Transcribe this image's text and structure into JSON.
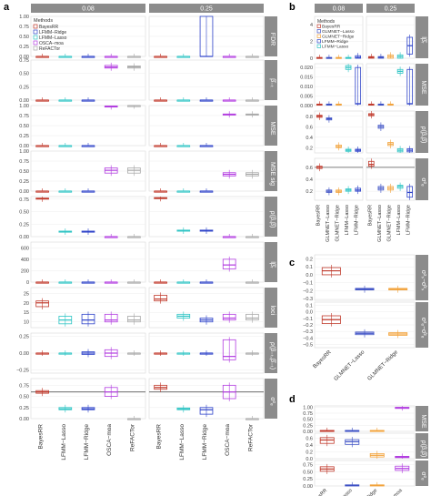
{
  "panel_letters": {
    "a": "a",
    "b": "b",
    "c": "c",
    "d": "d"
  },
  "legend": {
    "a": {
      "title": "Methods",
      "items": [
        "BayesRR",
        "LFMM−Ridge",
        "LFMM−Lasso",
        "OSCA−moa",
        "ReFACTor"
      ]
    },
    "b": {
      "title": "Methods",
      "items": [
        "BayesRR",
        "GLMNET−Lasso",
        "GLMNET−Ridge",
        "LFMM−Ridge",
        "LFMM−Lasso"
      ]
    }
  },
  "colors": {
    "BayesRR": "#c0392b",
    "LFMM−Lasso": "#2ec4c4",
    "LFMM−Ridge": "#2e43c9",
    "OSCA−moa": "#b23ce0",
    "ReFACTor": "#a8a8a8",
    "GLMNET−Lasso": "#3b4fc4",
    "GLMNET−Ridge": "#f2a23a",
    "strip": "#8c8c8c",
    "hline": "#555555"
  },
  "chart_data": [
    {
      "panel": "a",
      "type": "box",
      "columns": [
        "0.08",
        "0.25"
      ],
      "categories": [
        "BayesRR",
        "LFMM−Lasso",
        "LFMM−Ridge",
        "OSCA−moa",
        "ReFACTor"
      ],
      "rows": [
        {
          "label": "FDR",
          "yticks": [
            "0.00",
            "0.25",
            "0.50",
            "0.75",
            "1.00"
          ],
          "ylim": [
            0,
            1
          ],
          "med": [
            [
              0,
              0,
              0,
              0,
              0
            ],
            [
              0,
              0,
              0,
              0,
              0
            ]
          ],
          "q1": [
            [
              0,
              0,
              0,
              0,
              0
            ],
            [
              0,
              0,
              0,
              0,
              0
            ]
          ],
          "q3": [
            [
              0,
              0,
              0,
              0,
              0
            ],
            [
              0,
              0,
              1,
              0,
              0
            ]
          ]
        },
        {
          "label": "β̂₋ₜ",
          "yticks": [
            "0.00",
            "0.25",
            "0.50",
            "0.75"
          ],
          "ylim": [
            0,
            0.75
          ],
          "med": [
            [
              0,
              0,
              0,
              0.62,
              0.62
            ],
            [
              0,
              0,
              0,
              0,
              0
            ]
          ],
          "q1": [
            [
              0,
              0,
              0,
              0.6,
              0.6
            ],
            [
              0,
              0,
              0,
              0,
              0
            ]
          ],
          "q3": [
            [
              0,
              0,
              0,
              0.65,
              0.64
            ],
            [
              0,
              0,
              0,
              0,
              0
            ]
          ]
        },
        {
          "label": "MSE",
          "yticks": [
            "0.00",
            "0.25",
            "0.50",
            "0.75",
            "1.00"
          ],
          "ylim": [
            0,
            1
          ],
          "med": [
            [
              0,
              0,
              0,
              0.98,
              1.0
            ],
            [
              0,
              0,
              0,
              0.78,
              0.78
            ]
          ],
          "q1": [
            [
              0,
              0,
              0,
              0.97,
              0.99
            ],
            [
              0,
              0,
              0,
              0.77,
              0.77
            ]
          ],
          "q3": [
            [
              0,
              0,
              0,
              0.99,
              1.0
            ],
            [
              0,
              0,
              0,
              0.79,
              0.79
            ]
          ]
        },
        {
          "label": "MSE",
          "sub": "sig",
          "yticks": [
            "0.00",
            "0.25",
            "0.50",
            "0.75",
            "1.00"
          ],
          "ylim": [
            0,
            1
          ],
          "med": [
            [
              0,
              0,
              0,
              0.52,
              0.52
            ],
            [
              0,
              0,
              0,
              0.42,
              0.42
            ]
          ],
          "q1": [
            [
              0,
              0,
              0,
              0.45,
              0.45
            ],
            [
              0,
              0,
              0,
              0.38,
              0.38
            ]
          ],
          "q3": [
            [
              0,
              0,
              0,
              0.58,
              0.58
            ],
            [
              0,
              0,
              0,
              0.46,
              0.46
            ]
          ]
        },
        {
          "label": "ρ(β,β̂)",
          "yticks": [
            "0.00",
            "0.25",
            "0.50",
            "0.75"
          ],
          "ylim": [
            0,
            0.8
          ],
          "med": [
            [
              0.76,
              0.1,
              0.1,
              0,
              0
            ],
            [
              0.77,
              0.12,
              0.12,
              0,
              0
            ]
          ],
          "q1": [
            [
              0.75,
              0.09,
              0.09,
              0,
              0
            ],
            [
              0.76,
              0.11,
              0.11,
              0,
              0
            ]
          ],
          "q3": [
            [
              0.77,
              0.11,
              0.11,
              0,
              0
            ],
            [
              0.78,
              0.13,
              0.13,
              0,
              0
            ]
          ]
        },
        {
          "label": "lβ̂ᵣ",
          "yticks": [
            "0",
            "200",
            "400",
            "600"
          ],
          "ylim": [
            0,
            700
          ],
          "med": [
            [
              0,
              0,
              0,
              0,
              0
            ],
            [
              0,
              0,
              0,
              300,
              0
            ]
          ],
          "q1": [
            [
              0,
              0,
              0,
              0,
              0
            ],
            [
              0,
              0,
              0,
              230,
              0
            ]
          ],
          "q3": [
            [
              0,
              0,
              0,
              0,
              0
            ],
            [
              0,
              0,
              0,
              400,
              0
            ]
          ]
        },
        {
          "label": "loci",
          "yticks": [
            "10",
            "15",
            "20",
            "25"
          ],
          "ylim": [
            7,
            28
          ],
          "med": [
            [
              20,
              11,
              11,
              11,
              11
            ],
            [
              22,
              13,
              11,
              12,
              12
            ]
          ],
          "q1": [
            [
              18,
              9,
              9,
              10,
              10
            ],
            [
              21,
              12,
              10,
              11,
              11
            ]
          ],
          "q3": [
            [
              21,
              13,
              14,
              14,
              13
            ],
            [
              24,
              14,
              12,
              14,
              14
            ]
          ]
        },
        {
          "label": "ρ(β₋ₜ,β̂₋ₜ)",
          "yticks": [
            "−0.25",
            "0.00",
            "0.25"
          ],
          "ylim": [
            -0.3,
            0.3
          ],
          "med": [
            [
              0,
              0,
              0,
              0,
              0
            ],
            [
              0,
              0,
              0,
              -0.05,
              0
            ]
          ],
          "q1": [
            [
              0,
              0,
              -0.02,
              -0.05,
              0
            ],
            [
              0,
              0,
              0,
              -0.1,
              0
            ]
          ],
          "q3": [
            [
              0,
              0,
              0.02,
              0.05,
              0
            ],
            [
              0,
              0,
              0,
              0.2,
              0
            ]
          ]
        },
        {
          "label": "σ²ₑ",
          "yticks": [
            "0.00",
            "0.25",
            "0.50",
            "0.75"
          ],
          "ylim": [
            0,
            0.9
          ],
          "hline": 0.6,
          "med": [
            [
              0.6,
              0.22,
              0.22,
              0.6,
              0
            ],
            [
              0.7,
              0.22,
              0.2,
              0.6,
              0
            ]
          ],
          "q1": [
            [
              0.57,
              0.2,
              0.2,
              0.5,
              0
            ],
            [
              0.66,
              0.2,
              0.1,
              0.45,
              0
            ]
          ],
          "q3": [
            [
              0.63,
              0.25,
              0.25,
              0.7,
              0
            ],
            [
              0.75,
              0.24,
              0.25,
              0.75,
              0
            ]
          ]
        }
      ]
    },
    {
      "panel": "b",
      "type": "box",
      "columns": [
        "0.08",
        "0.25"
      ],
      "categories": [
        "BayesRR",
        "GLMNET−Lasso",
        "GLMNET−Ridge",
        "LFMM−Lasso",
        "LFMM−Ridge"
      ],
      "rows": [
        {
          "label": "lβ̂ᵣ",
          "yticks": [
            "0",
            "2",
            "4"
          ],
          "ylim": [
            0,
            5
          ]
        },
        {
          "label": "MSE",
          "yticks": [
            "0.000",
            "0.005",
            "0.010",
            "0.015",
            "0.020"
          ],
          "ylim": [
            0,
            0.022
          ]
        },
        {
          "label": "ρ(β,β̂)",
          "yticks": [
            "0.2",
            "0.4",
            "0.6",
            "0.8"
          ],
          "ylim": [
            0.1,
            0.9
          ]
        },
        {
          "label": "σ²ₑ",
          "yticks": [
            "0.2",
            "0.4",
            "0.6"
          ],
          "ylim": [
            0.05,
            0.75
          ],
          "hline": 0.6
        }
      ]
    },
    {
      "panel": "c",
      "type": "box",
      "categories": [
        "BayesRR",
        "GLMNET−Lasso",
        "GLMNET−Ridge"
      ],
      "rows": [
        {
          "label": "σ²ₛ−σ̂²ₛ",
          "yticks": [
            "0.2",
            "0.1",
            "0.0",
            "−0.1",
            "−0.2",
            "−0.3"
          ],
          "ylim": [
            -0.32,
            0.25
          ]
        },
        {
          "label": "σ²ₑ−σ̂²ₑ",
          "yticks": [
            "0.1",
            "0.0",
            "−0.1",
            "−0.2",
            "−0.3",
            "−0.4",
            "−0.5"
          ],
          "ylim": [
            -0.55,
            0.15
          ]
        }
      ]
    },
    {
      "panel": "d",
      "type": "box",
      "categories": [
        "BayesRR",
        "GLMNET−Lasso",
        "GLMNET−Ridge",
        "OSCA−moa"
      ],
      "rows": [
        {
          "label": "MSE",
          "yticks": [
            "0.00",
            "0.25",
            "0.50",
            "0.75",
            "1.00"
          ],
          "ylim": [
            0,
            1.05
          ]
        },
        {
          "label": "ρ(β,β̂)",
          "yticks": [
            "0.0",
            "0.2",
            "0.4",
            "0.6"
          ],
          "ylim": [
            0,
            0.75
          ]
        },
        {
          "label": "σ²ₑ",
          "yticks": [
            "0.00",
            "0.25",
            "0.50",
            "0.75"
          ],
          "ylim": [
            0,
            0.9
          ]
        }
      ]
    }
  ]
}
